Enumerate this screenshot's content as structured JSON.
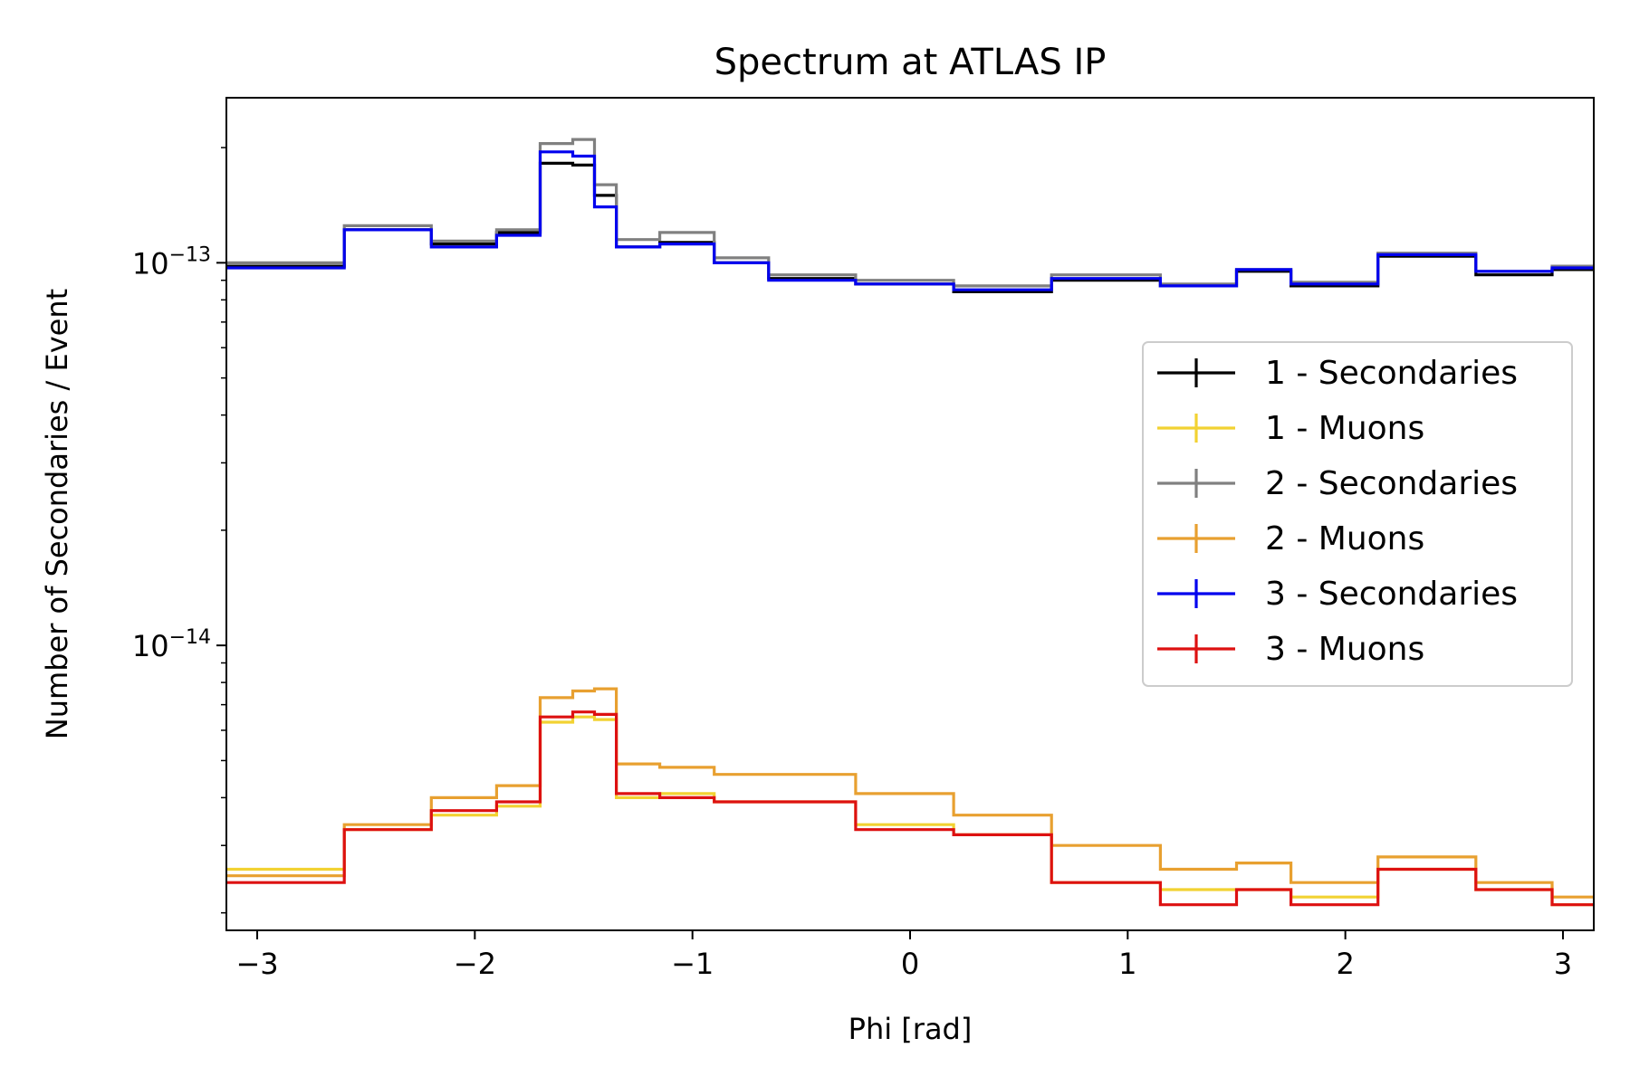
{
  "chart_data": {
    "type": "line",
    "title": "Spectrum at ATLAS IP",
    "xlabel": "Phi [rad]",
    "ylabel": "Number of Secondaries / Event",
    "y_scale": "log",
    "xlim": [
      -3.1416,
      3.1416
    ],
    "ylim": [
      1.8e-15,
      2.7e-13
    ],
    "x_ticks": [
      -3,
      -2,
      -1,
      0,
      1,
      2,
      3
    ],
    "x_tick_labels": [
      "−3",
      "−2",
      "−1",
      "0",
      "1",
      "2",
      "3"
    ],
    "y_major_ticks": [
      1e-14,
      1e-13
    ],
    "y_tick_labels": [
      {
        "base": "10",
        "exp": "−14"
      },
      {
        "base": "10",
        "exp": "−13"
      }
    ],
    "grid": false,
    "legend_position": "center-right",
    "draw_style": "step",
    "x": [
      -2.8,
      -2.4,
      -2.0,
      -1.8,
      -1.6,
      -1.5,
      -1.4,
      -1.3,
      -1.0,
      -0.8,
      -0.5,
      0.0,
      0.4,
      0.9,
      1.4,
      1.6,
      1.9,
      2.4,
      2.8,
      3.1
    ],
    "series": [
      {
        "name": "1 - Secondaries",
        "color": "#000000",
        "values": [
          9.8e-14,
          1.22e-13,
          1.12e-13,
          1.2e-13,
          1.82e-13,
          1.8e-13,
          1.5e-13,
          1.1e-13,
          1.13e-13,
          1e-13,
          9.1e-14,
          8.8e-14,
          8.4e-14,
          9e-14,
          8.7e-14,
          9.5e-14,
          8.7e-14,
          1.04e-13,
          9.3e-14,
          9.6e-14
        ]
      },
      {
        "name": "1 - Muons",
        "color": "#f2d232",
        "values": [
          2.6e-15,
          3.3e-15,
          3.6e-15,
          3.8e-15,
          6.3e-15,
          6.5e-15,
          6.4e-15,
          4e-15,
          4.1e-15,
          3.9e-15,
          3.9e-15,
          3.4e-15,
          3.2e-15,
          2.4e-15,
          2.3e-15,
          2.3e-15,
          2.2e-15,
          2.6e-15,
          2.3e-15,
          2.1e-15
        ]
      },
      {
        "name": "2 - Secondaries",
        "color": "#808080",
        "values": [
          1e-13,
          1.25e-13,
          1.14e-13,
          1.22e-13,
          2.05e-13,
          2.1e-13,
          1.6e-13,
          1.15e-13,
          1.2e-13,
          1.03e-13,
          9.3e-14,
          9e-14,
          8.7e-14,
          9.3e-14,
          8.8e-14,
          9.6e-14,
          8.9e-14,
          1.06e-13,
          9.5e-14,
          9.8e-14
        ]
      },
      {
        "name": "2 - Muons",
        "color": "#e8a030",
        "values": [
          2.5e-15,
          3.4e-15,
          4e-15,
          4.3e-15,
          7.3e-15,
          7.6e-15,
          7.7e-15,
          4.9e-15,
          4.8e-15,
          4.6e-15,
          4.6e-15,
          4.1e-15,
          3.6e-15,
          3e-15,
          2.6e-15,
          2.7e-15,
          2.4e-15,
          2.8e-15,
          2.4e-15,
          2.2e-15
        ]
      },
      {
        "name": "3 - Secondaries",
        "color": "#0000ee",
        "values": [
          9.7e-14,
          1.22e-13,
          1.1e-13,
          1.18e-13,
          1.95e-13,
          1.9e-13,
          1.4e-13,
          1.1e-13,
          1.12e-13,
          1e-13,
          9e-14,
          8.8e-14,
          8.5e-14,
          9.1e-14,
          8.7e-14,
          9.6e-14,
          8.8e-14,
          1.05e-13,
          9.5e-14,
          9.7e-14
        ]
      },
      {
        "name": "3 - Muons",
        "color": "#dd1111",
        "values": [
          2.4e-15,
          3.3e-15,
          3.7e-15,
          3.9e-15,
          6.5e-15,
          6.7e-15,
          6.6e-15,
          4.1e-15,
          4e-15,
          3.9e-15,
          3.9e-15,
          3.3e-15,
          3.2e-15,
          2.4e-15,
          2.1e-15,
          2.3e-15,
          2.1e-15,
          2.6e-15,
          2.3e-15,
          2.1e-15
        ]
      }
    ]
  }
}
